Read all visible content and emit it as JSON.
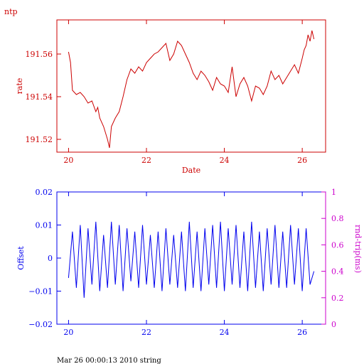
{
  "header_label": "ntp",
  "footer_text": "Mar 26 00:00:13 2010 string",
  "colors": {
    "rate": "#cc0000",
    "offset": "#0000ee",
    "rtt": "#cc00cc"
  },
  "chart_data": [
    {
      "type": "line",
      "xlabel": "Date",
      "ylabel": "rate",
      "xlim": [
        19.7,
        26.6
      ],
      "ylim": [
        191.514,
        191.576
      ],
      "xticks": [
        20,
        22,
        24,
        26
      ],
      "yticks": [
        191.52,
        191.54,
        191.56
      ],
      "ytick_labels": [
        "191.52",
        "191.54",
        "191.56"
      ],
      "series": [
        {
          "x": [
            20.0,
            20.05,
            20.1,
            20.2,
            20.3,
            20.4,
            20.5,
            20.6,
            20.7,
            20.75,
            20.8,
            20.9,
            21.0,
            21.05,
            21.1,
            21.2,
            21.3,
            21.4,
            21.5,
            21.6,
            21.7,
            21.8,
            21.9,
            22.0,
            22.1,
            22.2,
            22.3,
            22.4,
            22.5,
            22.6,
            22.7,
            22.8,
            22.9,
            23.0,
            23.1,
            23.2,
            23.3,
            23.4,
            23.5,
            23.6,
            23.7,
            23.8,
            23.9,
            24.0,
            24.1,
            24.2,
            24.3,
            24.4,
            24.5,
            24.6,
            24.7,
            24.8,
            24.9,
            25.0,
            25.1,
            25.2,
            25.3,
            25.4,
            25.5,
            25.6,
            25.7,
            25.8,
            25.9,
            26.0,
            26.05,
            26.1,
            26.15,
            26.2,
            26.25,
            26.3
          ],
          "y": [
            191.561,
            191.556,
            191.543,
            191.541,
            191.542,
            191.54,
            191.537,
            191.538,
            191.533,
            191.535,
            191.53,
            191.526,
            191.52,
            191.516,
            191.526,
            191.53,
            191.533,
            191.54,
            191.548,
            191.553,
            191.551,
            191.554,
            191.552,
            191.556,
            191.558,
            191.56,
            191.561,
            191.563,
            191.565,
            191.557,
            191.56,
            191.566,
            191.564,
            191.56,
            191.556,
            191.551,
            191.548,
            191.552,
            191.55,
            191.547,
            191.543,
            191.549,
            191.546,
            191.545,
            191.542,
            191.554,
            191.54,
            191.546,
            191.549,
            191.545,
            191.538,
            191.545,
            191.544,
            191.541,
            191.545,
            191.552,
            191.548,
            191.55,
            191.546,
            191.549,
            191.552,
            191.555,
            191.551,
            191.558,
            191.562,
            191.564,
            191.569,
            191.566,
            191.571,
            191.567
          ]
        }
      ]
    },
    {
      "type": "line",
      "ylabel": "Offset",
      "y2label": "rnd-trip(ms)",
      "xlim": [
        19.7,
        26.6
      ],
      "ylim": [
        -0.02,
        0.02
      ],
      "y2lim": [
        0,
        1
      ],
      "xticks": [
        20,
        22,
        24,
        26
      ],
      "yticks": [
        -0.02,
        -0.01,
        0,
        0.01,
        0.02
      ],
      "ytick_labels": [
        "−0.02",
        "−0.01",
        "0",
        "0.01",
        "0.02"
      ],
      "y2ticks": [
        0,
        0.2,
        0.4,
        0.6,
        0.8,
        1
      ],
      "y2tick_labels": [
        "0",
        "0.2",
        "0.4",
        "0.6",
        "0.8",
        "1"
      ],
      "series": [
        {
          "x": [
            20.0,
            20.1,
            20.2,
            20.3,
            20.4,
            20.5,
            20.6,
            20.7,
            20.8,
            20.9,
            21.0,
            21.1,
            21.2,
            21.3,
            21.4,
            21.5,
            21.6,
            21.7,
            21.8,
            21.9,
            22.0,
            22.1,
            22.2,
            22.3,
            22.4,
            22.5,
            22.6,
            22.7,
            22.8,
            22.9,
            23.0,
            23.1,
            23.2,
            23.3,
            23.4,
            23.5,
            23.6,
            23.7,
            23.8,
            23.9,
            24.0,
            24.1,
            24.2,
            24.3,
            24.4,
            24.5,
            24.6,
            24.7,
            24.8,
            24.9,
            25.0,
            25.1,
            25.2,
            25.3,
            25.4,
            25.5,
            25.6,
            25.7,
            25.8,
            25.9,
            26.0,
            26.1,
            26.2,
            26.3
          ],
          "y": [
            -0.006,
            0.008,
            -0.009,
            0.01,
            -0.012,
            0.009,
            -0.008,
            0.011,
            -0.01,
            0.007,
            -0.009,
            0.011,
            -0.008,
            0.01,
            -0.01,
            0.009,
            -0.007,
            0.008,
            -0.009,
            0.01,
            -0.008,
            0.007,
            -0.009,
            0.008,
            -0.01,
            0.009,
            -0.008,
            0.007,
            -0.009,
            0.008,
            -0.01,
            0.011,
            -0.009,
            0.008,
            -0.01,
            0.009,
            -0.008,
            0.01,
            -0.009,
            0.011,
            -0.01,
            0.009,
            -0.008,
            0.01,
            -0.009,
            0.008,
            -0.01,
            0.011,
            -0.009,
            0.008,
            -0.01,
            0.009,
            -0.008,
            0.01,
            -0.009,
            0.008,
            -0.009,
            0.01,
            -0.008,
            0.009,
            -0.01,
            0.009,
            -0.008,
            -0.004
          ]
        }
      ]
    }
  ]
}
